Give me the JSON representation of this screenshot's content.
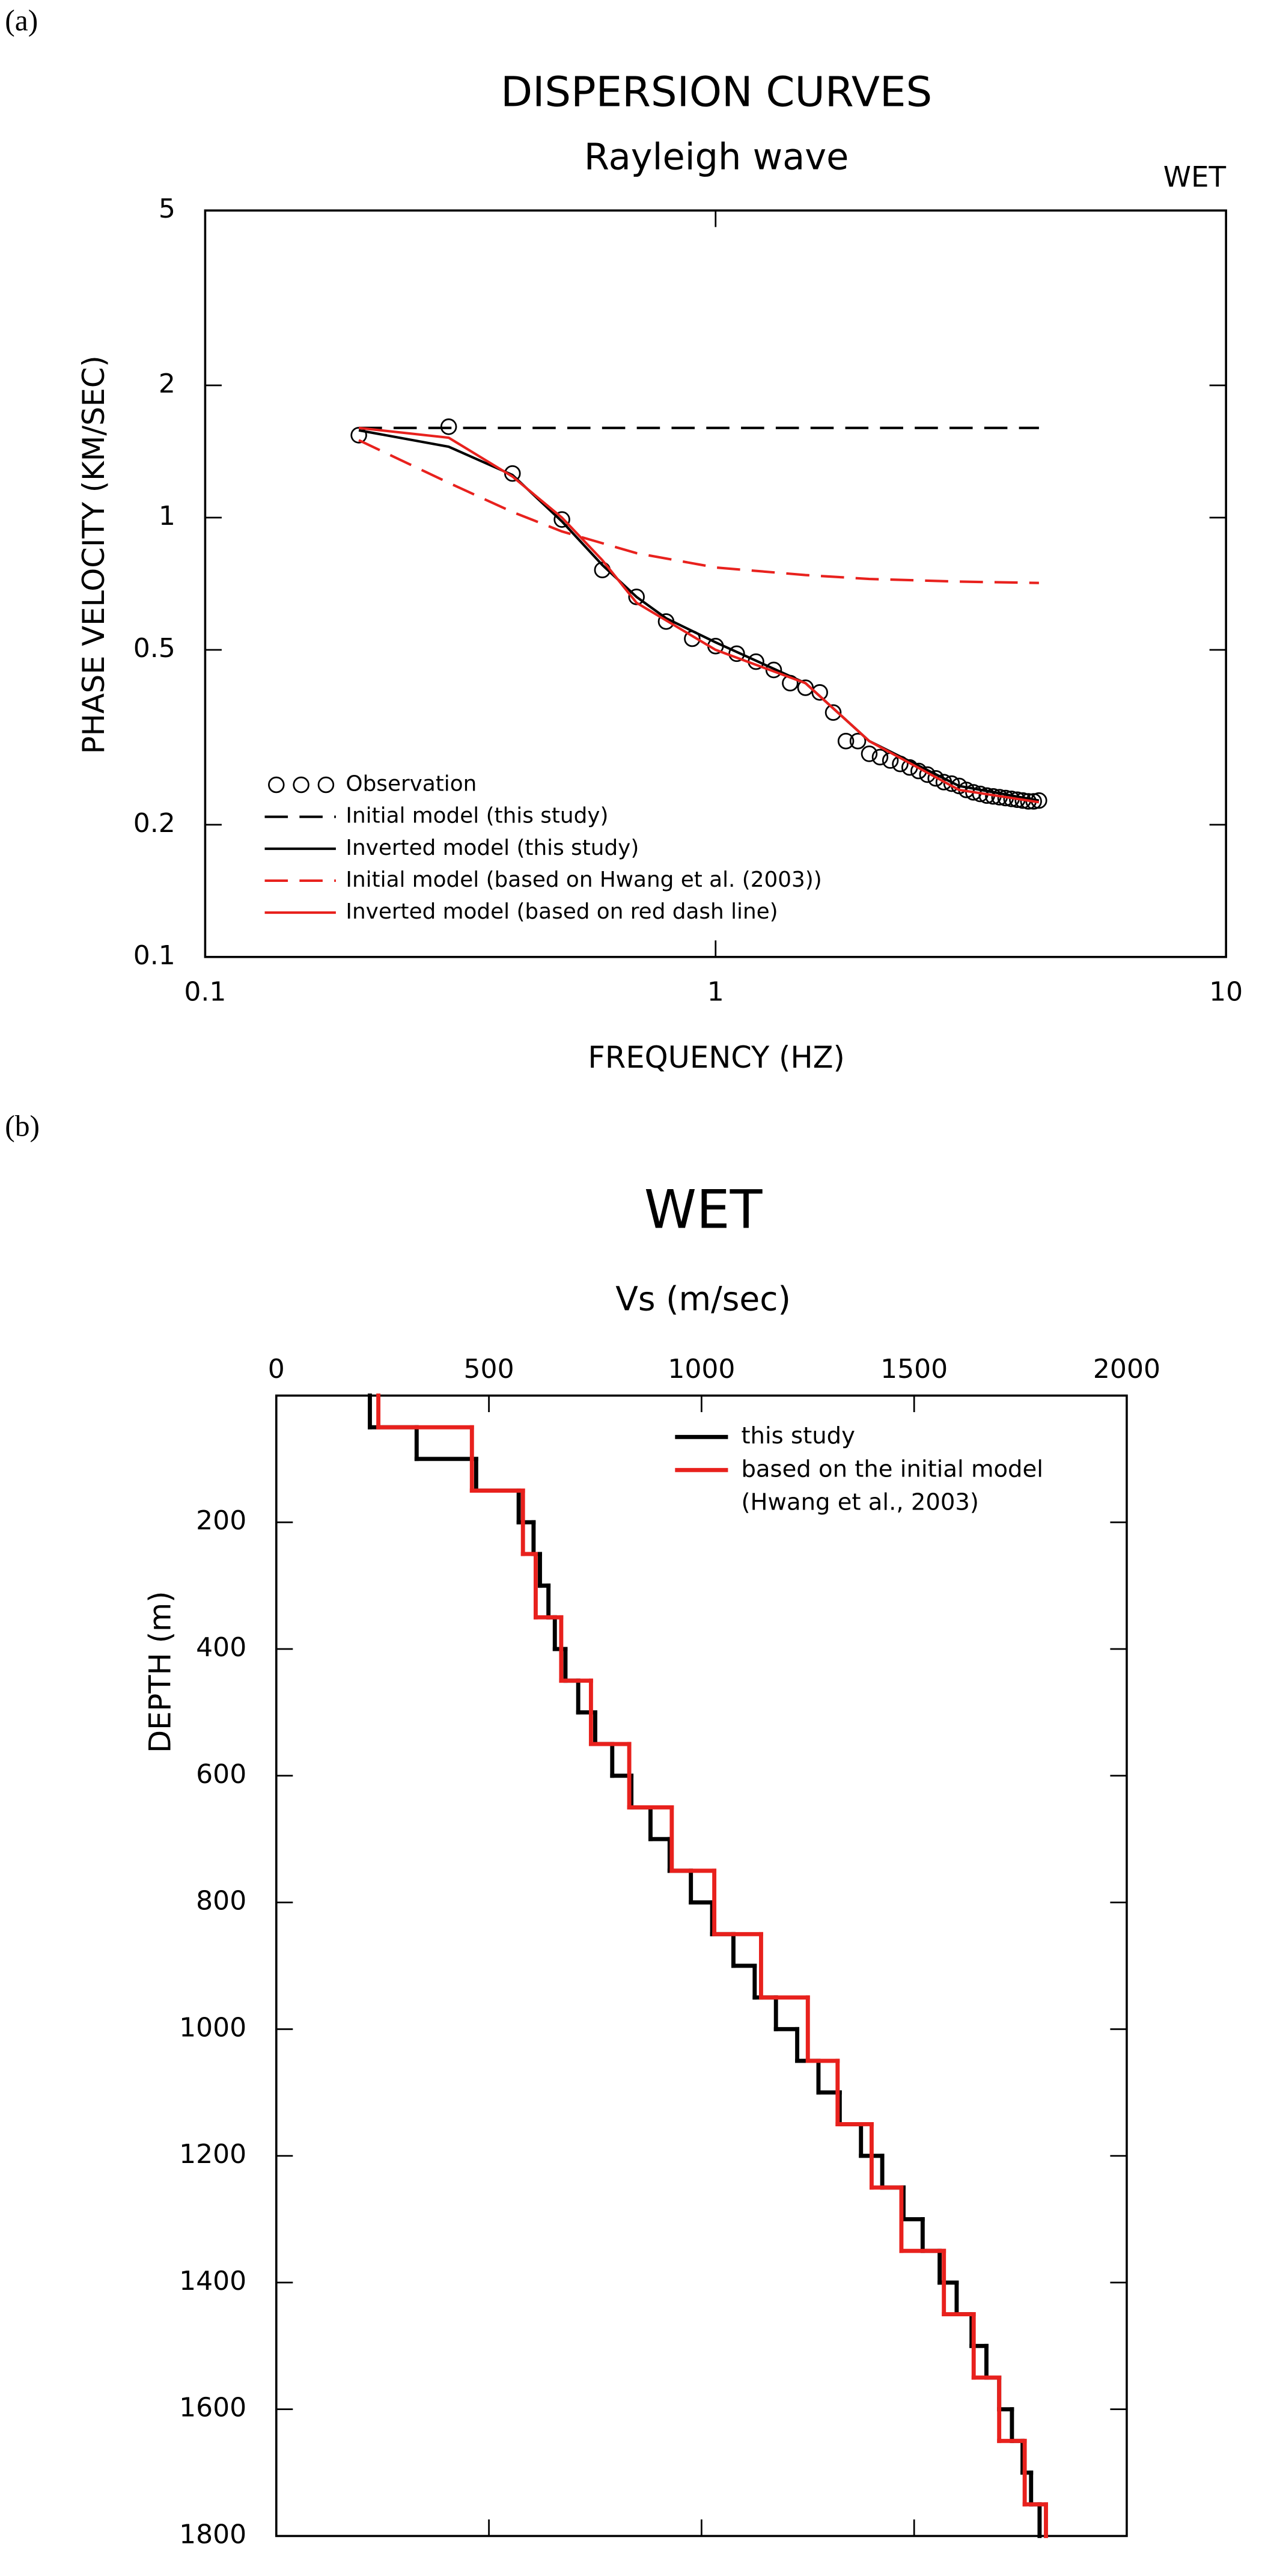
{
  "chart_data": [
    {
      "type": "line",
      "panel_label": "(a)",
      "title": "DISPERSION CURVES",
      "subtitle": "Rayleigh wave",
      "annotation": "WET",
      "xlabel": "FREQUENCY (HZ)",
      "ylabel": "PHASE VELOCITY (KM/SEC)",
      "xscale": "log",
      "yscale": "log",
      "xlim": [
        0.1,
        10
      ],
      "ylim": [
        0.1,
        5
      ],
      "xticks": [
        0.1,
        1,
        10
      ],
      "yticks": [
        0.1,
        0.2,
        0.5,
        1,
        2,
        5
      ],
      "legend": "lower left",
      "series": [
        {
          "name": "Observation",
          "color": "#000000",
          "marker": "circle",
          "x": [
            0.2,
            0.3,
            0.4,
            0.5,
            0.6,
            0.7,
            0.8,
            0.9,
            1.0,
            1.1,
            1.2,
            1.3,
            1.4,
            1.5,
            1.6,
            1.7,
            1.8,
            1.9,
            2.0,
            2.1,
            2.2,
            2.3,
            2.4,
            2.5,
            2.6,
            2.7,
            2.8,
            2.9,
            3.0,
            3.1,
            3.2,
            3.3,
            3.4,
            3.5,
            3.6,
            3.7,
            3.8,
            3.9,
            4.0,
            4.1,
            4.2,
            4.3
          ],
          "values": [
            1.54,
            1.61,
            1.26,
            0.99,
            0.76,
            0.66,
            0.58,
            0.53,
            0.51,
            0.49,
            0.47,
            0.45,
            0.42,
            0.41,
            0.4,
            0.36,
            0.31,
            0.31,
            0.29,
            0.285,
            0.28,
            0.275,
            0.27,
            0.265,
            0.26,
            0.255,
            0.25,
            0.248,
            0.245,
            0.24,
            0.237,
            0.235,
            0.233,
            0.232,
            0.231,
            0.23,
            0.229,
            0.228,
            0.227,
            0.226,
            0.226,
            0.227
          ]
        },
        {
          "name": "Initial model (this study)",
          "color": "#000000",
          "style": "dashed",
          "x": [
            0.2,
            4.3
          ],
          "values": [
            1.6,
            1.6
          ]
        },
        {
          "name": "Inverted model (this study)",
          "color": "#000000",
          "style": "solid",
          "x": [
            0.2,
            0.3,
            0.4,
            0.5,
            0.6,
            0.7,
            0.8,
            1.0,
            1.5,
            2.0,
            3.0,
            4.3
          ],
          "values": [
            1.58,
            1.45,
            1.25,
            0.98,
            0.78,
            0.66,
            0.59,
            0.52,
            0.42,
            0.31,
            0.245,
            0.227
          ]
        },
        {
          "name": "Initial model (based on Hwang et al. (2003))",
          "color": "#e8211d",
          "style": "dashed",
          "x": [
            0.2,
            0.3,
            0.4,
            0.5,
            0.7,
            1.0,
            1.5,
            2.0,
            3.0,
            4.3
          ],
          "values": [
            1.5,
            1.2,
            1.03,
            0.93,
            0.83,
            0.77,
            0.74,
            0.725,
            0.715,
            0.71
          ]
        },
        {
          "name": "Inverted model (based on red dash line)",
          "color": "#e8211d",
          "style": "solid",
          "x": [
            0.2,
            0.3,
            0.4,
            0.5,
            0.6,
            0.7,
            1.0,
            1.5,
            2.0,
            3.0,
            4.3
          ],
          "values": [
            1.6,
            1.52,
            1.24,
            1.0,
            0.8,
            0.64,
            0.5,
            0.42,
            0.31,
            0.24,
            0.225
          ]
        }
      ]
    },
    {
      "type": "step",
      "panel_label": "(b)",
      "title": "WET",
      "xlabel": "Vs (m/sec)",
      "ylabel": "DEPTH (m)",
      "xlim": [
        0,
        2000
      ],
      "ylim": [
        0,
        1800
      ],
      "xticks": [
        0,
        500,
        1000,
        1500,
        2000
      ],
      "yticks": [
        200,
        400,
        600,
        800,
        1000,
        1200,
        1400,
        1600,
        1800
      ],
      "y_reversed": true,
      "x_axis_position": "top",
      "legend": "upper right",
      "series": [
        {
          "name": "this study",
          "color": "#000000",
          "depths": [
            0,
            50,
            100,
            150,
            200,
            250,
            300,
            350,
            400,
            450,
            500,
            550,
            600,
            650,
            700,
            750,
            800,
            850,
            900,
            950,
            1000,
            1050,
            1100,
            1150,
            1200,
            1250,
            1300,
            1350,
            1400,
            1450,
            1500,
            1550,
            1600,
            1650,
            1700,
            1750,
            1800
          ],
          "values": [
            220,
            330,
            470,
            570,
            605,
            620,
            640,
            655,
            680,
            710,
            750,
            790,
            835,
            880,
            925,
            975,
            1025,
            1075,
            1125,
            1175,
            1225,
            1275,
            1325,
            1375,
            1425,
            1475,
            1520,
            1560,
            1600,
            1635,
            1670,
            1700,
            1730,
            1755,
            1775,
            1795
          ]
        },
        {
          "name": "based on the initial model (Hwang et al., 2003)",
          "color": "#e8211d",
          "depths": [
            0,
            50,
            150,
            250,
            350,
            450,
            550,
            650,
            750,
            850,
            950,
            1050,
            1150,
            1250,
            1350,
            1450,
            1550,
            1650,
            1750,
            1800
          ],
          "values": [
            240,
            460,
            580,
            610,
            670,
            740,
            830,
            930,
            1030,
            1140,
            1250,
            1320,
            1400,
            1470,
            1570,
            1640,
            1700,
            1760,
            1810
          ]
        }
      ]
    }
  ]
}
